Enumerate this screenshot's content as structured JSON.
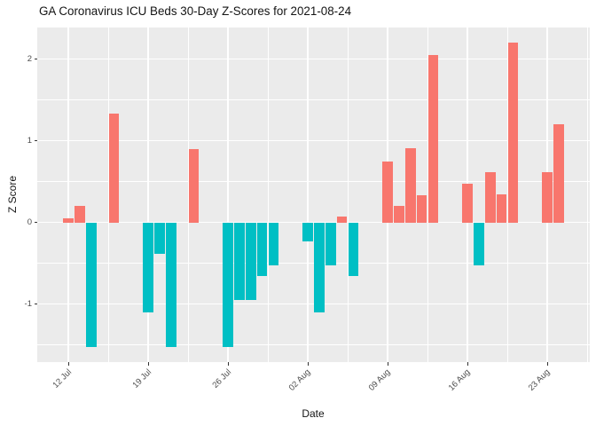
{
  "chart_data": {
    "type": "bar",
    "title": "GA Coronavirus ICU Beds 30-Day Z-Scores for 2021-08-24",
    "xlabel": "Date",
    "ylabel": "Z Score",
    "legend": "none",
    "grid": "major and minor white gridlines on gray panel",
    "panel_background": "#EBEBEB",
    "colors": {
      "positive": "#F8766D",
      "negative": "#00BFC4"
    },
    "ylim": [
      -1.72,
      2.38
    ],
    "y_major_ticks": [
      2,
      1,
      0,
      -1
    ],
    "y_major_tick_labels": [
      "2",
      "1",
      "0",
      "-1"
    ],
    "y_minor_ticks": [
      1.5,
      0.5,
      -0.5,
      -1.5
    ],
    "x_tick_labels": [
      "12 Jul",
      "19 Jul",
      "26 Jul",
      "02 Aug",
      "09 Aug",
      "16 Aug",
      "23 Aug"
    ],
    "x_tick_dates": [
      "2021-07-12",
      "2021-07-19",
      "2021-07-26",
      "2021-08-02",
      "2021-08-09",
      "2021-08-16",
      "2021-08-23"
    ],
    "bars": [
      {
        "date": "2021-07-12",
        "value": 0.05
      },
      {
        "date": "2021-07-13",
        "value": 0.2
      },
      {
        "date": "2021-07-14",
        "value": -1.53
      },
      {
        "date": "2021-07-16",
        "value": 1.33
      },
      {
        "date": "2021-07-19",
        "value": -1.1
      },
      {
        "date": "2021-07-20",
        "value": -0.38
      },
      {
        "date": "2021-07-21",
        "value": -1.53
      },
      {
        "date": "2021-07-23",
        "value": 0.9
      },
      {
        "date": "2021-07-26",
        "value": -1.53
      },
      {
        "date": "2021-07-27",
        "value": -0.95
      },
      {
        "date": "2021-07-28",
        "value": -0.95
      },
      {
        "date": "2021-07-29",
        "value": -0.66
      },
      {
        "date": "2021-07-30",
        "value": -0.52
      },
      {
        "date": "2021-08-02",
        "value": -0.23
      },
      {
        "date": "2021-08-03",
        "value": -1.1
      },
      {
        "date": "2021-08-04",
        "value": -0.52
      },
      {
        "date": "2021-08-05",
        "value": 0.07
      },
      {
        "date": "2021-08-06",
        "value": -0.66
      },
      {
        "date": "2021-08-09",
        "value": 0.75
      },
      {
        "date": "2021-08-10",
        "value": 0.2
      },
      {
        "date": "2021-08-11",
        "value": 0.91
      },
      {
        "date": "2021-08-12",
        "value": 0.33
      },
      {
        "date": "2021-08-13",
        "value": 2.05
      },
      {
        "date": "2021-08-16",
        "value": 0.47
      },
      {
        "date": "2021-08-17",
        "value": -0.52
      },
      {
        "date": "2021-08-18",
        "value": 0.62
      },
      {
        "date": "2021-08-19",
        "value": 0.34
      },
      {
        "date": "2021-08-20",
        "value": 2.2
      },
      {
        "date": "2021-08-23",
        "value": 0.62
      },
      {
        "date": "2021-08-24",
        "value": 1.2
      }
    ]
  }
}
